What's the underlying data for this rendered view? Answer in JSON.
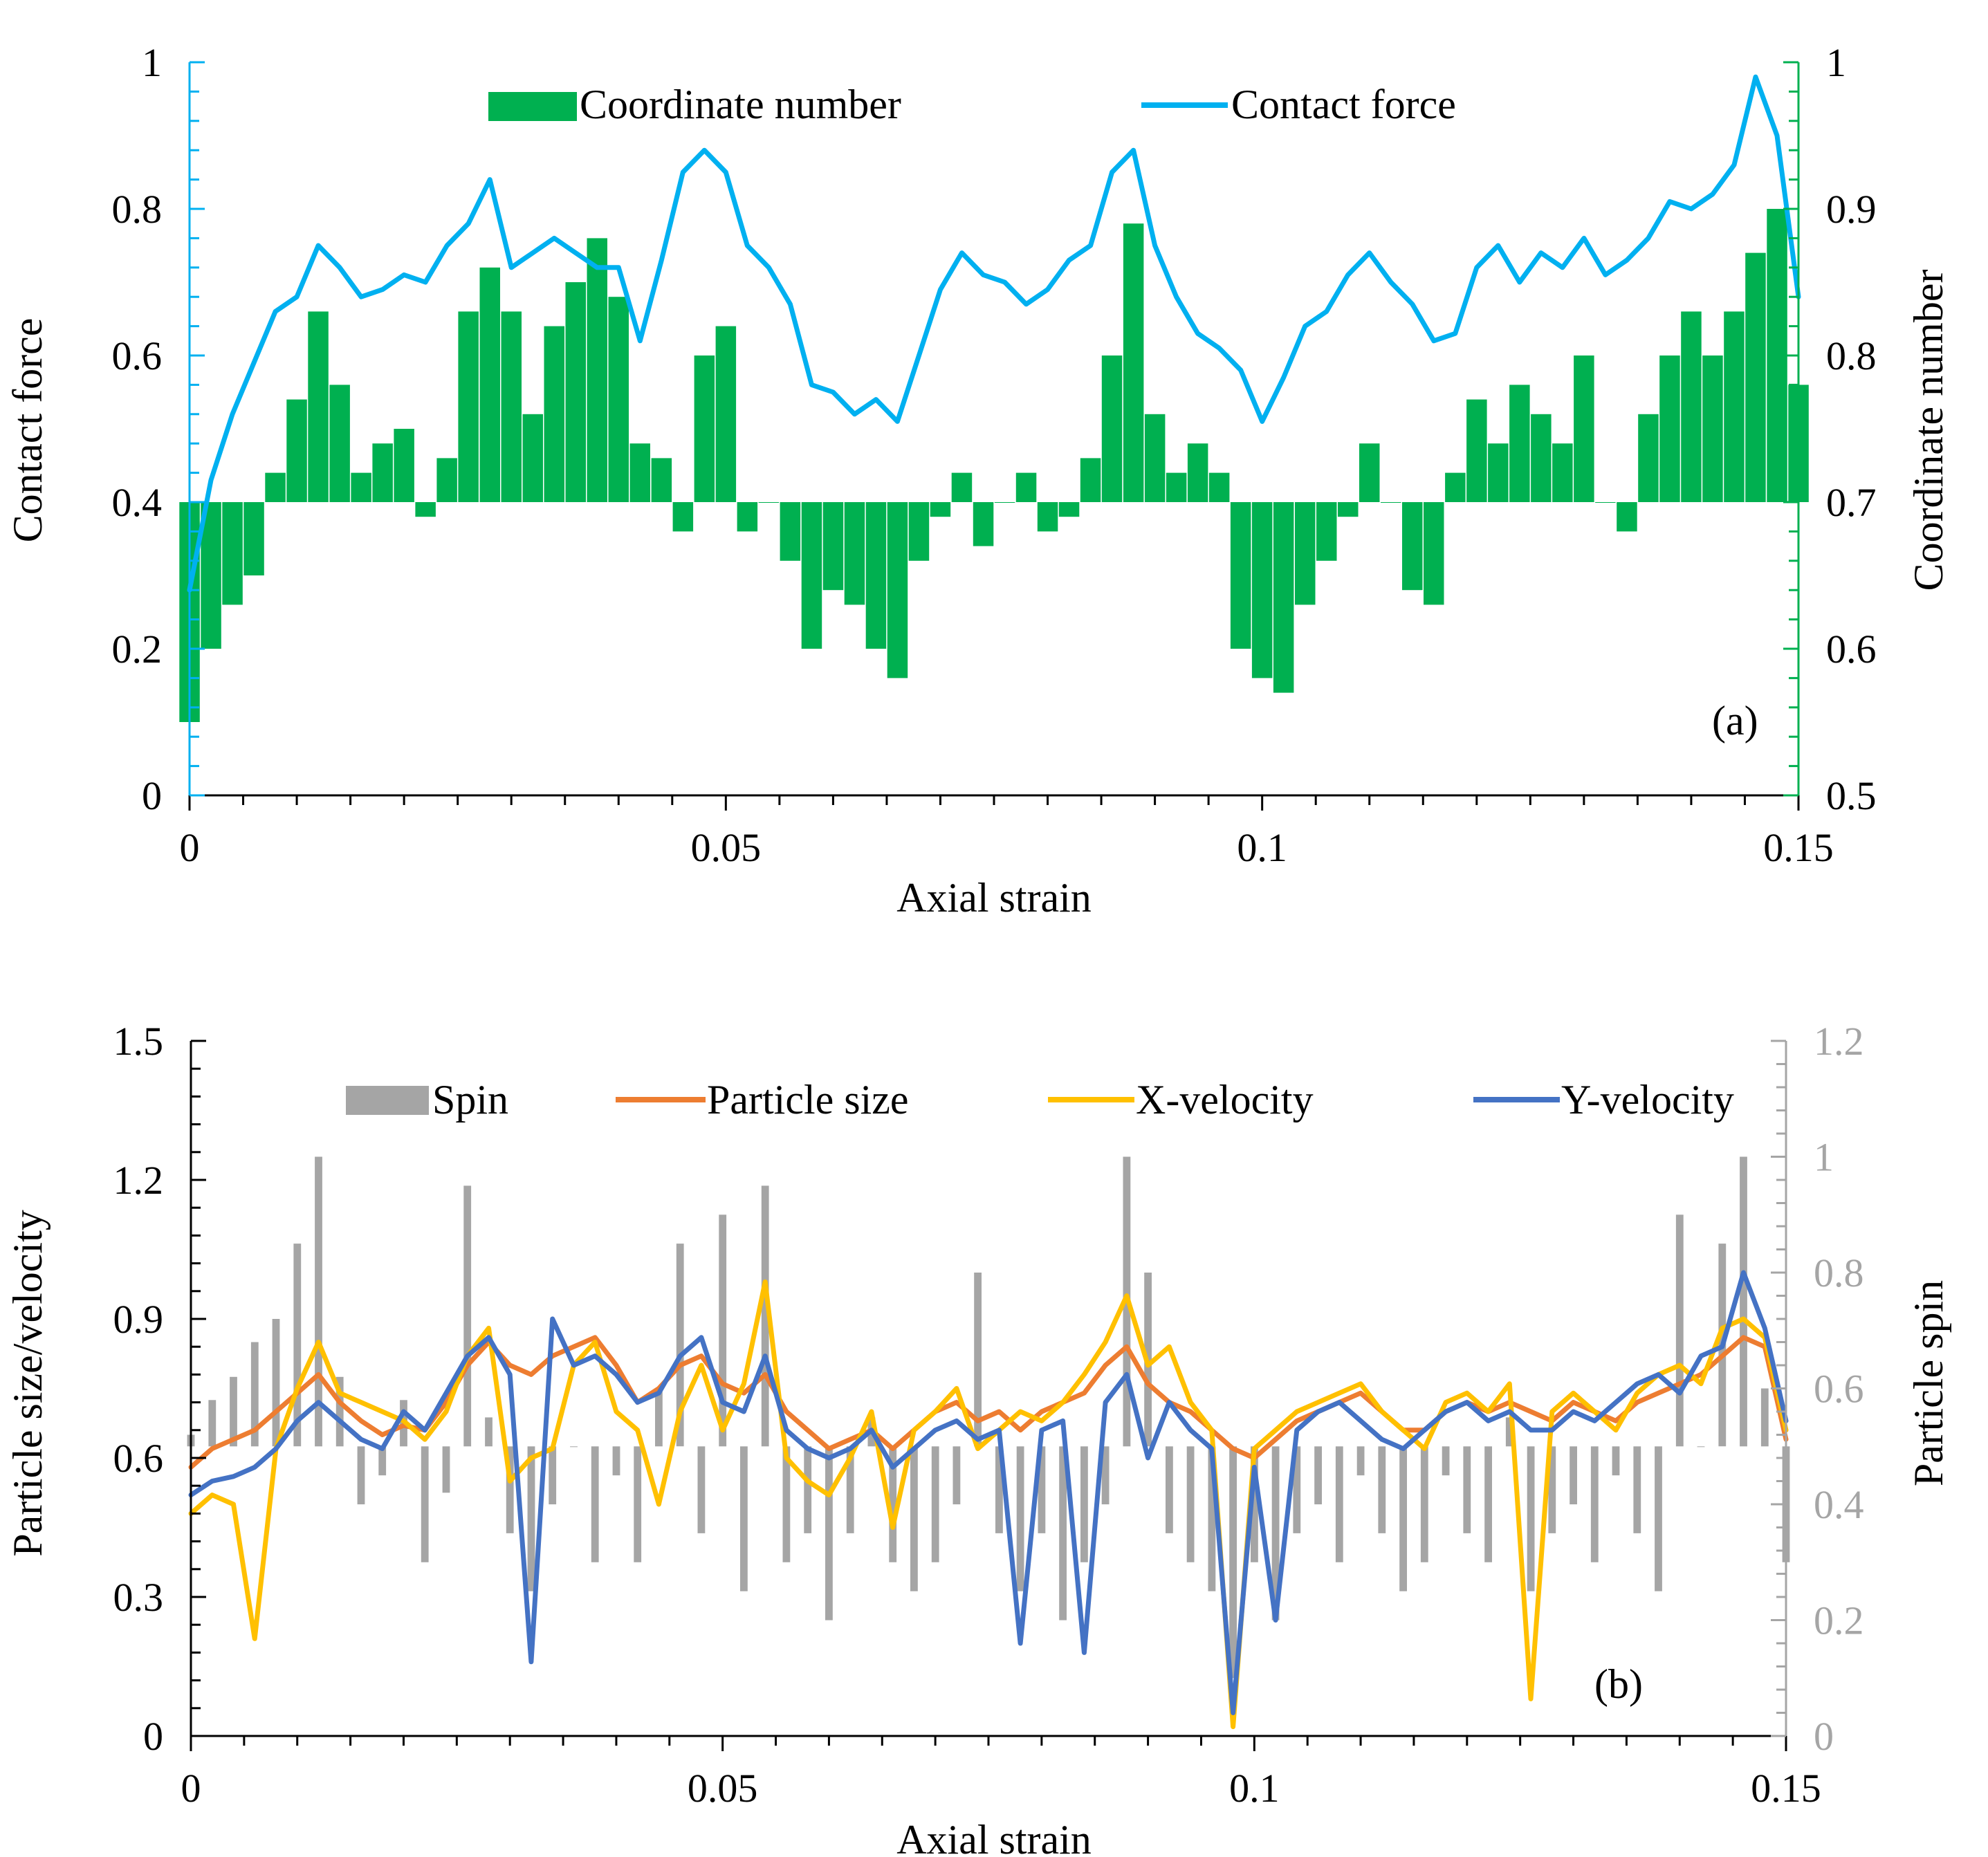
{
  "chart_data": [
    {
      "panel_label": "(a)",
      "type": "bar+line",
      "xlabel": "Axial strain",
      "ylabel_left": "Contact force",
      "ylabel_right": "Coordinate number",
      "xlim": [
        0,
        0.15
      ],
      "ylim_left": [
        0,
        1
      ],
      "ylim_right": [
        0.5,
        1
      ],
      "bar_baseline": 0.7,
      "xticks": [
        "0",
        "0.05",
        "0.1",
        "0.15"
      ],
      "yticks_left": [
        "0",
        "0.2",
        "0.4",
        "0.6",
        "0.8",
        "1"
      ],
      "yticks_right": [
        "0.5",
        "0.6",
        "0.7",
        "0.8",
        "0.9",
        "1"
      ],
      "colors": {
        "bars": "#00b050",
        "line": "#00b0f0"
      },
      "series": [
        {
          "name": "Coordinate number",
          "kind": "bar",
          "axis": "right",
          "x": [
            0,
            0.002,
            0.004,
            0.006,
            0.008,
            0.01,
            0.012,
            0.014,
            0.016,
            0.018,
            0.02,
            0.022,
            0.024,
            0.026,
            0.028,
            0.03,
            0.032,
            0.034,
            0.036,
            0.038,
            0.04,
            0.042,
            0.044,
            0.046,
            0.048,
            0.05,
            0.052,
            0.054,
            0.056,
            0.058,
            0.06,
            0.062,
            0.064,
            0.066,
            0.068,
            0.07,
            0.072,
            0.074,
            0.076,
            0.078,
            0.08,
            0.082,
            0.084,
            0.086,
            0.088,
            0.09,
            0.092,
            0.094,
            0.096,
            0.098,
            0.1,
            0.102,
            0.104,
            0.106,
            0.108,
            0.11,
            0.112,
            0.114,
            0.116,
            0.118,
            0.12,
            0.122,
            0.124,
            0.126,
            0.128,
            0.13,
            0.132,
            0.134,
            0.136,
            0.138,
            0.14,
            0.142,
            0.144,
            0.146,
            0.148,
            0.15
          ],
          "values": [
            0.55,
            0.6,
            0.63,
            0.65,
            0.72,
            0.77,
            0.83,
            0.78,
            0.72,
            0.74,
            0.75,
            0.69,
            0.73,
            0.83,
            0.86,
            0.83,
            0.76,
            0.82,
            0.85,
            0.88,
            0.84,
            0.74,
            0.73,
            0.68,
            0.8,
            0.82,
            0.68,
            0.7,
            0.66,
            0.6,
            0.64,
            0.63,
            0.6,
            0.58,
            0.66,
            0.69,
            0.72,
            0.67,
            0.7,
            0.72,
            0.68,
            0.69,
            0.73,
            0.8,
            0.89,
            0.76,
            0.72,
            0.74,
            0.72,
            0.6,
            0.58,
            0.57,
            0.63,
            0.66,
            0.69,
            0.74,
            0.7,
            0.64,
            0.63,
            0.72,
            0.77,
            0.74,
            0.78,
            0.76,
            0.74,
            0.8,
            0.7,
            0.68,
            0.76,
            0.8,
            0.83,
            0.8,
            0.83,
            0.87,
            0.9,
            0.78
          ],
          "x_extra_note": "",
          "dummy": ""
        },
        {
          "name": "Contact force",
          "kind": "line",
          "axis": "left",
          "x": [
            0,
            0.002,
            0.004,
            0.006,
            0.008,
            0.01,
            0.012,
            0.014,
            0.016,
            0.018,
            0.02,
            0.022,
            0.024,
            0.026,
            0.028,
            0.03,
            0.032,
            0.034,
            0.036,
            0.038,
            0.04,
            0.042,
            0.044,
            0.046,
            0.048,
            0.05,
            0.052,
            0.054,
            0.056,
            0.058,
            0.06,
            0.062,
            0.064,
            0.066,
            0.068,
            0.07,
            0.072,
            0.074,
            0.076,
            0.078,
            0.08,
            0.082,
            0.084,
            0.086,
            0.088,
            0.09,
            0.092,
            0.094,
            0.096,
            0.098,
            0.1,
            0.102,
            0.104,
            0.106,
            0.108,
            0.11,
            0.112,
            0.114,
            0.116,
            0.118,
            0.12,
            0.122,
            0.124,
            0.126,
            0.128,
            0.13,
            0.132,
            0.134,
            0.136,
            0.138,
            0.14,
            0.142,
            0.144,
            0.146,
            0.148,
            0.15
          ],
          "values": [
            0.28,
            0.43,
            0.52,
            0.59,
            0.66,
            0.68,
            0.75,
            0.72,
            0.68,
            0.69,
            0.71,
            0.7,
            0.75,
            0.78,
            0.84,
            0.72,
            0.74,
            0.76,
            0.74,
            0.72,
            0.72,
            0.62,
            0.73,
            0.85,
            0.88,
            0.85,
            0.75,
            0.72,
            0.67,
            0.56,
            0.55,
            0.52,
            0.54,
            0.51,
            0.6,
            0.69,
            0.74,
            0.71,
            0.7,
            0.67,
            0.69,
            0.73,
            0.75,
            0.85,
            0.88,
            0.75,
            0.68,
            0.63,
            0.61,
            0.58,
            0.51,
            0.57,
            0.64,
            0.66,
            0.71,
            0.74,
            0.7,
            0.67,
            0.62,
            0.63,
            0.72,
            0.75,
            0.7,
            0.74,
            0.72,
            0.76,
            0.71,
            0.73,
            0.76,
            0.81,
            0.8,
            0.82,
            0.86,
            0.98,
            0.9,
            0.68
          ]
        }
      ]
    },
    {
      "panel_label": "(b)",
      "type": "bar+line",
      "xlabel": "Axial strain",
      "ylabel_left": "Particle size/velocity",
      "ylabel_right": "Particle spin",
      "xlim": [
        0,
        0.15
      ],
      "ylim_left": [
        0,
        1.5
      ],
      "ylim_right": [
        0,
        1.2
      ],
      "bar_baseline": 0.5,
      "xticks": [
        "0",
        "0.05",
        "0.1",
        "0.15"
      ],
      "yticks_left": [
        "0",
        "0.3",
        "0.6",
        "0.9",
        "1.2",
        "1.5"
      ],
      "yticks_right": [
        "0",
        "0.2",
        "0.4",
        "0.6",
        "0.8",
        "1",
        "1.2"
      ],
      "colors": {
        "spin": "#a5a5a5",
        "size": "#ed7d31",
        "xvel": "#ffc000",
        "yvel": "#4472c4"
      },
      "series": [
        {
          "name": "Spin",
          "kind": "bar",
          "axis": "right",
          "x": [
            0,
            0.002,
            0.004,
            0.006,
            0.008,
            0.01,
            0.012,
            0.014,
            0.016,
            0.018,
            0.02,
            0.022,
            0.024,
            0.026,
            0.028,
            0.03,
            0.032,
            0.034,
            0.036,
            0.038,
            0.04,
            0.042,
            0.044,
            0.046,
            0.048,
            0.05,
            0.052,
            0.054,
            0.056,
            0.058,
            0.06,
            0.062,
            0.064,
            0.066,
            0.068,
            0.07,
            0.072,
            0.074,
            0.076,
            0.078,
            0.08,
            0.082,
            0.084,
            0.086,
            0.088,
            0.09,
            0.092,
            0.094,
            0.096,
            0.098,
            0.1,
            0.102,
            0.104,
            0.106,
            0.108,
            0.11,
            0.112,
            0.114,
            0.116,
            0.118,
            0.12,
            0.122,
            0.124,
            0.126,
            0.128,
            0.13,
            0.132,
            0.134,
            0.136,
            0.138,
            0.14,
            0.142,
            0.144,
            0.146,
            0.148,
            0.15
          ],
          "values": [
            0.52,
            0.58,
            0.62,
            0.68,
            0.72,
            0.85,
            1.0,
            0.62,
            0.4,
            0.45,
            0.58,
            0.3,
            0.42,
            0.95,
            0.55,
            0.35,
            0.25,
            0.4,
            0.5,
            0.3,
            0.45,
            0.3,
            0.6,
            0.85,
            0.35,
            0.9,
            0.25,
            0.95,
            0.3,
            0.35,
            0.2,
            0.35,
            0.55,
            0.3,
            0.25,
            0.3,
            0.4,
            0.8,
            0.35,
            0.25,
            0.35,
            0.2,
            0.3,
            0.4,
            1.0,
            0.8,
            0.35,
            0.3,
            0.25,
            0.1,
            0.3,
            0.2,
            0.35,
            0.4,
            0.3,
            0.45,
            0.35,
            0.25,
            0.3,
            0.45,
            0.35,
            0.3,
            0.55,
            0.25,
            0.35,
            0.4,
            0.3,
            0.45,
            0.35,
            0.25,
            0.9,
            0.5,
            0.85,
            1.0,
            0.6,
            0.3
          ]
        },
        {
          "name": "Particle size",
          "kind": "line",
          "axis": "left",
          "x": [
            0,
            0.002,
            0.004,
            0.006,
            0.008,
            0.01,
            0.012,
            0.014,
            0.016,
            0.018,
            0.02,
            0.022,
            0.024,
            0.026,
            0.028,
            0.03,
            0.032,
            0.034,
            0.036,
            0.038,
            0.04,
            0.042,
            0.044,
            0.046,
            0.048,
            0.05,
            0.052,
            0.054,
            0.056,
            0.058,
            0.06,
            0.062,
            0.064,
            0.066,
            0.068,
            0.07,
            0.072,
            0.074,
            0.076,
            0.078,
            0.08,
            0.082,
            0.084,
            0.086,
            0.088,
            0.09,
            0.092,
            0.094,
            0.096,
            0.098,
            0.1,
            0.102,
            0.104,
            0.106,
            0.108,
            0.11,
            0.112,
            0.114,
            0.116,
            0.118,
            0.12,
            0.122,
            0.124,
            0.126,
            0.128,
            0.13,
            0.132,
            0.134,
            0.136,
            0.138,
            0.14,
            0.142,
            0.144,
            0.146,
            0.148,
            0.15
          ],
          "values": [
            0.58,
            0.62,
            0.64,
            0.66,
            0.7,
            0.74,
            0.78,
            0.72,
            0.68,
            0.65,
            0.67,
            0.66,
            0.72,
            0.8,
            0.85,
            0.8,
            0.78,
            0.82,
            0.84,
            0.86,
            0.8,
            0.72,
            0.75,
            0.8,
            0.82,
            0.76,
            0.74,
            0.78,
            0.7,
            0.66,
            0.62,
            0.64,
            0.66,
            0.62,
            0.66,
            0.7,
            0.72,
            0.68,
            0.7,
            0.66,
            0.7,
            0.72,
            0.74,
            0.8,
            0.84,
            0.76,
            0.72,
            0.7,
            0.66,
            0.62,
            0.6,
            0.64,
            0.68,
            0.7,
            0.72,
            0.74,
            0.7,
            0.66,
            0.66,
            0.7,
            0.72,
            0.7,
            0.72,
            0.7,
            0.68,
            0.72,
            0.7,
            0.68,
            0.72,
            0.74,
            0.76,
            0.78,
            0.82,
            0.86,
            0.84,
            0.64
          ]
        },
        {
          "name": "X-velocity",
          "kind": "line",
          "axis": "left",
          "x": [
            0,
            0.002,
            0.004,
            0.006,
            0.008,
            0.01,
            0.012,
            0.014,
            0.016,
            0.018,
            0.02,
            0.022,
            0.024,
            0.026,
            0.028,
            0.03,
            0.032,
            0.034,
            0.036,
            0.038,
            0.04,
            0.042,
            0.044,
            0.046,
            0.048,
            0.05,
            0.052,
            0.054,
            0.056,
            0.058,
            0.06,
            0.062,
            0.064,
            0.066,
            0.068,
            0.07,
            0.072,
            0.074,
            0.076,
            0.078,
            0.08,
            0.082,
            0.084,
            0.086,
            0.088,
            0.09,
            0.092,
            0.094,
            0.096,
            0.098,
            0.1,
            0.102,
            0.104,
            0.106,
            0.108,
            0.11,
            0.112,
            0.114,
            0.116,
            0.118,
            0.12,
            0.122,
            0.124,
            0.126,
            0.128,
            0.13,
            0.132,
            0.134,
            0.136,
            0.138,
            0.14,
            0.142,
            0.144,
            0.146,
            0.148,
            0.15
          ],
          "values": [
            0.48,
            0.52,
            0.5,
            0.21,
            0.62,
            0.75,
            0.85,
            0.74,
            0.72,
            0.7,
            0.68,
            0.64,
            0.7,
            0.82,
            0.88,
            0.55,
            0.6,
            0.62,
            0.8,
            0.85,
            0.7,
            0.66,
            0.5,
            0.7,
            0.8,
            0.66,
            0.76,
            0.98,
            0.6,
            0.55,
            0.52,
            0.6,
            0.7,
            0.45,
            0.66,
            0.7,
            0.75,
            0.62,
            0.66,
            0.7,
            0.68,
            0.72,
            0.78,
            0.85,
            0.95,
            0.8,
            0.84,
            0.72,
            0.66,
            0.02,
            0.62,
            0.66,
            0.7,
            0.72,
            0.74,
            0.76,
            0.7,
            0.66,
            0.62,
            0.72,
            0.74,
            0.7,
            0.76,
            0.08,
            0.7,
            0.74,
            0.7,
            0.66,
            0.74,
            0.78,
            0.8,
            0.76,
            0.88,
            0.9,
            0.86,
            0.66
          ]
        },
        {
          "name": "Y-velocity",
          "kind": "line",
          "axis": "left",
          "x": [
            0,
            0.002,
            0.004,
            0.006,
            0.008,
            0.01,
            0.012,
            0.014,
            0.016,
            0.018,
            0.02,
            0.022,
            0.024,
            0.026,
            0.028,
            0.03,
            0.032,
            0.034,
            0.036,
            0.038,
            0.04,
            0.042,
            0.044,
            0.046,
            0.048,
            0.05,
            0.052,
            0.054,
            0.056,
            0.058,
            0.06,
            0.062,
            0.064,
            0.066,
            0.068,
            0.07,
            0.072,
            0.074,
            0.076,
            0.078,
            0.08,
            0.082,
            0.084,
            0.086,
            0.088,
            0.09,
            0.092,
            0.094,
            0.096,
            0.098,
            0.1,
            0.102,
            0.104,
            0.106,
            0.108,
            0.11,
            0.112,
            0.114,
            0.116,
            0.118,
            0.12,
            0.122,
            0.124,
            0.126,
            0.128,
            0.13,
            0.132,
            0.134,
            0.136,
            0.138,
            0.14,
            0.142,
            0.144,
            0.146,
            0.148,
            0.15
          ],
          "values": [
            0.52,
            0.55,
            0.56,
            0.58,
            0.62,
            0.68,
            0.72,
            0.68,
            0.64,
            0.62,
            0.7,
            0.66,
            0.74,
            0.82,
            0.86,
            0.78,
            0.16,
            0.9,
            0.8,
            0.82,
            0.78,
            0.72,
            0.74,
            0.82,
            0.86,
            0.72,
            0.7,
            0.82,
            0.66,
            0.62,
            0.6,
            0.62,
            0.66,
            0.58,
            0.62,
            0.66,
            0.68,
            0.64,
            0.66,
            0.2,
            0.66,
            0.68,
            0.18,
            0.72,
            0.78,
            0.6,
            0.72,
            0.66,
            0.62,
            0.05,
            0.58,
            0.25,
            0.66,
            0.7,
            0.72,
            0.68,
            0.64,
            0.62,
            0.66,
            0.7,
            0.72,
            0.68,
            0.7,
            0.66,
            0.66,
            0.7,
            0.68,
            0.72,
            0.76,
            0.78,
            0.74,
            0.82,
            0.84,
            1.0,
            0.88,
            0.68
          ]
        }
      ]
    }
  ]
}
